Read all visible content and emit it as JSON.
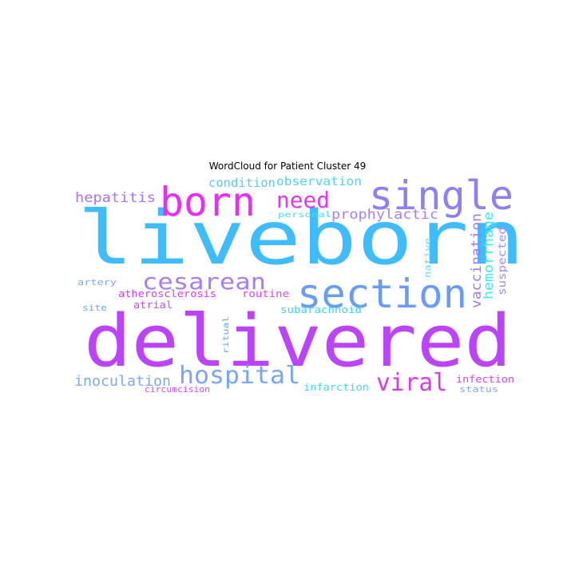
{
  "chart_data": {
    "type": "wordcloud",
    "title": "WordCloud for Patient Cluster 49",
    "words": [
      {
        "text": "liveborn",
        "weight": 100,
        "color": "#3fbcfb"
      },
      {
        "text": "delivered",
        "weight": 100,
        "color": "#bc44f8"
      },
      {
        "text": "single",
        "weight": 50,
        "color": "#8c80f6"
      },
      {
        "text": "born",
        "weight": 47,
        "color": "#e82ef6"
      },
      {
        "text": "section",
        "weight": 45,
        "color": "#6b9cf5"
      },
      {
        "text": "cesarean",
        "weight": 28,
        "color": "#a97bf4"
      },
      {
        "text": "hospital",
        "weight": 28,
        "color": "#79a5f8"
      },
      {
        "text": "need",
        "weight": 27,
        "color": "#df38f2"
      },
      {
        "text": "viral",
        "weight": 27,
        "color": "#d53af0"
      },
      {
        "text": "prophylactic",
        "weight": 16,
        "color": "#a981f5"
      },
      {
        "text": "hepatitis",
        "weight": 16,
        "color": "#a872f5"
      },
      {
        "text": "inoculation",
        "weight": 16,
        "color": "#7ea8f2"
      },
      {
        "text": "condition",
        "weight": 14,
        "color": "#5ac8f6"
      },
      {
        "text": "observation",
        "weight": 14,
        "color": "#4fd4f4"
      },
      {
        "text": "vaccination",
        "weight": 16,
        "color": "#9d7bf5"
      },
      {
        "text": "hemorrhage",
        "weight": 14,
        "color": "#3ee6f2"
      },
      {
        "text": "suspected",
        "weight": 12,
        "color": "#a68cf3"
      },
      {
        "text": "native",
        "weight": 10,
        "color": "#59e1f4"
      },
      {
        "text": "personal",
        "weight": 9,
        "color": "#4ad9f1"
      },
      {
        "text": "artery",
        "weight": 10,
        "color": "#7aa8f5"
      },
      {
        "text": "atherosclerosis",
        "weight": 10,
        "color": "#d83cf2"
      },
      {
        "text": "routine",
        "weight": 10,
        "color": "#e041f2"
      },
      {
        "text": "atrial",
        "weight": 10,
        "color": "#c24df5"
      },
      {
        "text": "site",
        "weight": 10,
        "color": "#6fa4f5"
      },
      {
        "text": "subarachnoid",
        "weight": 10,
        "color": "#38d6f2"
      },
      {
        "text": "ritual",
        "weight": 9,
        "color": "#5aa9f5"
      },
      {
        "text": "infection",
        "weight": 10,
        "color": "#e33cf0"
      },
      {
        "text": "circumcision",
        "weight": 9,
        "color": "#cf4cf4"
      },
      {
        "text": "infarction",
        "weight": 10,
        "color": "#40d8f2"
      },
      {
        "text": "status",
        "weight": 10,
        "color": "#84a8f5"
      }
    ]
  }
}
